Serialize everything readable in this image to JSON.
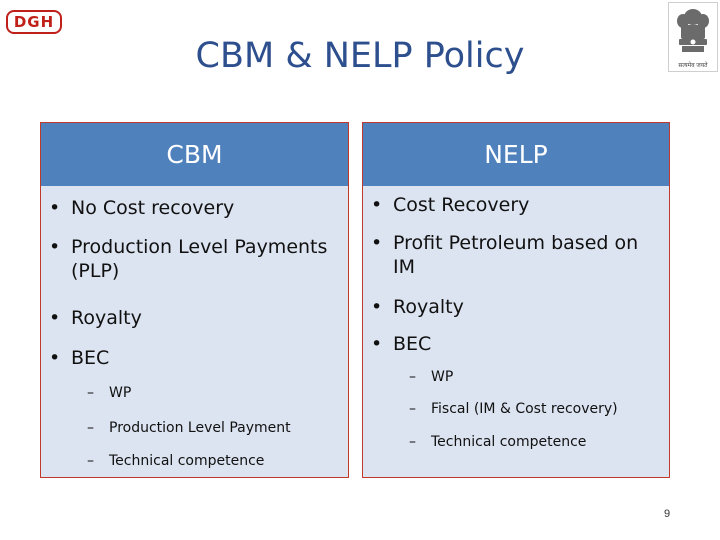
{
  "logo": {
    "text": "DGH"
  },
  "emblem": {
    "caption": "सत्यमेव जयते"
  },
  "title": "CBM & NELP Policy",
  "columns": {
    "left": {
      "header": "CBM",
      "items": [
        "No Cost recovery",
        "Production Level Payments (PLP)",
        "Royalty",
        "BEC"
      ],
      "subitems": [
        "WP",
        "Production Level Payment",
        "Technical competence"
      ]
    },
    "right": {
      "header": "NELP",
      "items": [
        "Cost Recovery",
        "Profit Petroleum based on IM",
        "Royalty",
        "BEC"
      ],
      "subitems": [
        "WP",
        "Fiscal (IM & Cost recovery)",
        "Technical competence"
      ]
    }
  },
  "bullet": "•",
  "dash": "–",
  "page_number": "9"
}
